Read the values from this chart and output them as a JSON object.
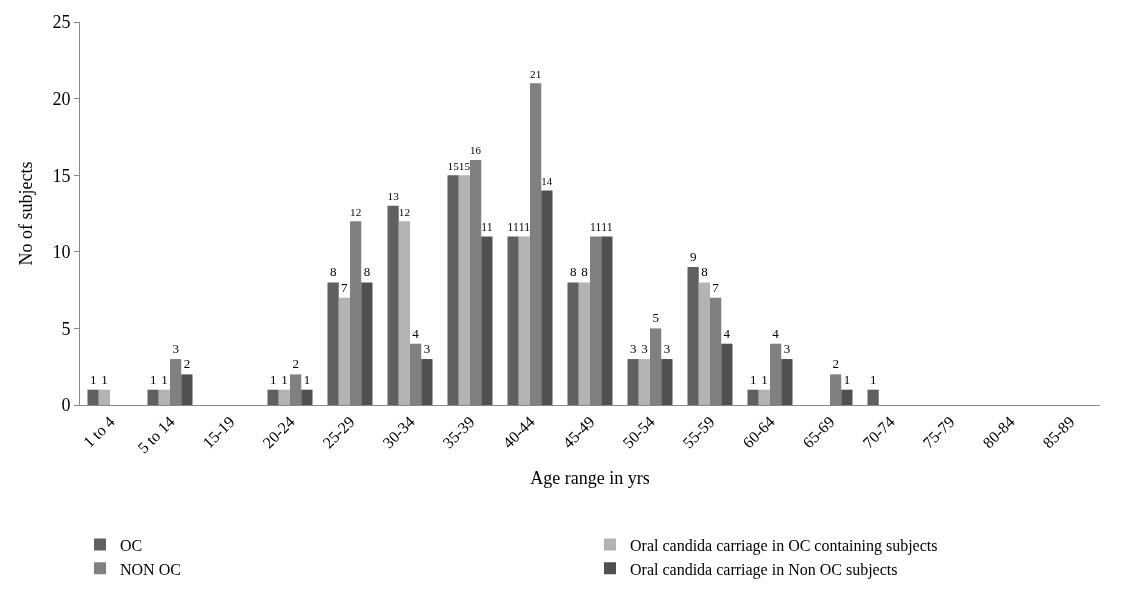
{
  "chart_data": {
    "type": "bar",
    "xlabel": "Age range in yrs",
    "ylabel": "No of subjects",
    "categories": [
      "1 to 4",
      "5 to 14",
      "15-19",
      "20-24",
      "25-29",
      "30-34",
      "35-39",
      "40-44",
      "45-49",
      "50-54",
      "55-59",
      "60-64",
      "65-69",
      "70-74",
      "75-79",
      "80-84",
      "85-89"
    ],
    "series": [
      {
        "name": "OC",
        "color": "#606060",
        "values": [
          1,
          1,
          null,
          1,
          8,
          13,
          15,
          11,
          8,
          3,
          9,
          1,
          null,
          1,
          null,
          null,
          null
        ]
      },
      {
        "name": "Oral candida carriage in OC containing subjects",
        "color": "#b3b3b3",
        "values": [
          1,
          1,
          null,
          1,
          7,
          12,
          15,
          11,
          8,
          3,
          8,
          1,
          null,
          null,
          null,
          null,
          null
        ]
      },
      {
        "name": "NON OC",
        "color": "#808080",
        "values": [
          null,
          3,
          null,
          2,
          12,
          4,
          16,
          21,
          11,
          5,
          7,
          4,
          2,
          null,
          null,
          null,
          null
        ]
      },
      {
        "name": "Oral candida carriage in Non OC subjects",
        "color": "#505050",
        "values": [
          null,
          2,
          null,
          1,
          8,
          3,
          11,
          14,
          11,
          3,
          4,
          3,
          1,
          null,
          null,
          null,
          null
        ]
      }
    ],
    "ylim": [
      0,
      25
    ],
    "yticks": [
      0,
      5,
      10,
      15,
      20,
      25
    ],
    "grid": false,
    "legend": "bottom",
    "data_labels": true
  }
}
